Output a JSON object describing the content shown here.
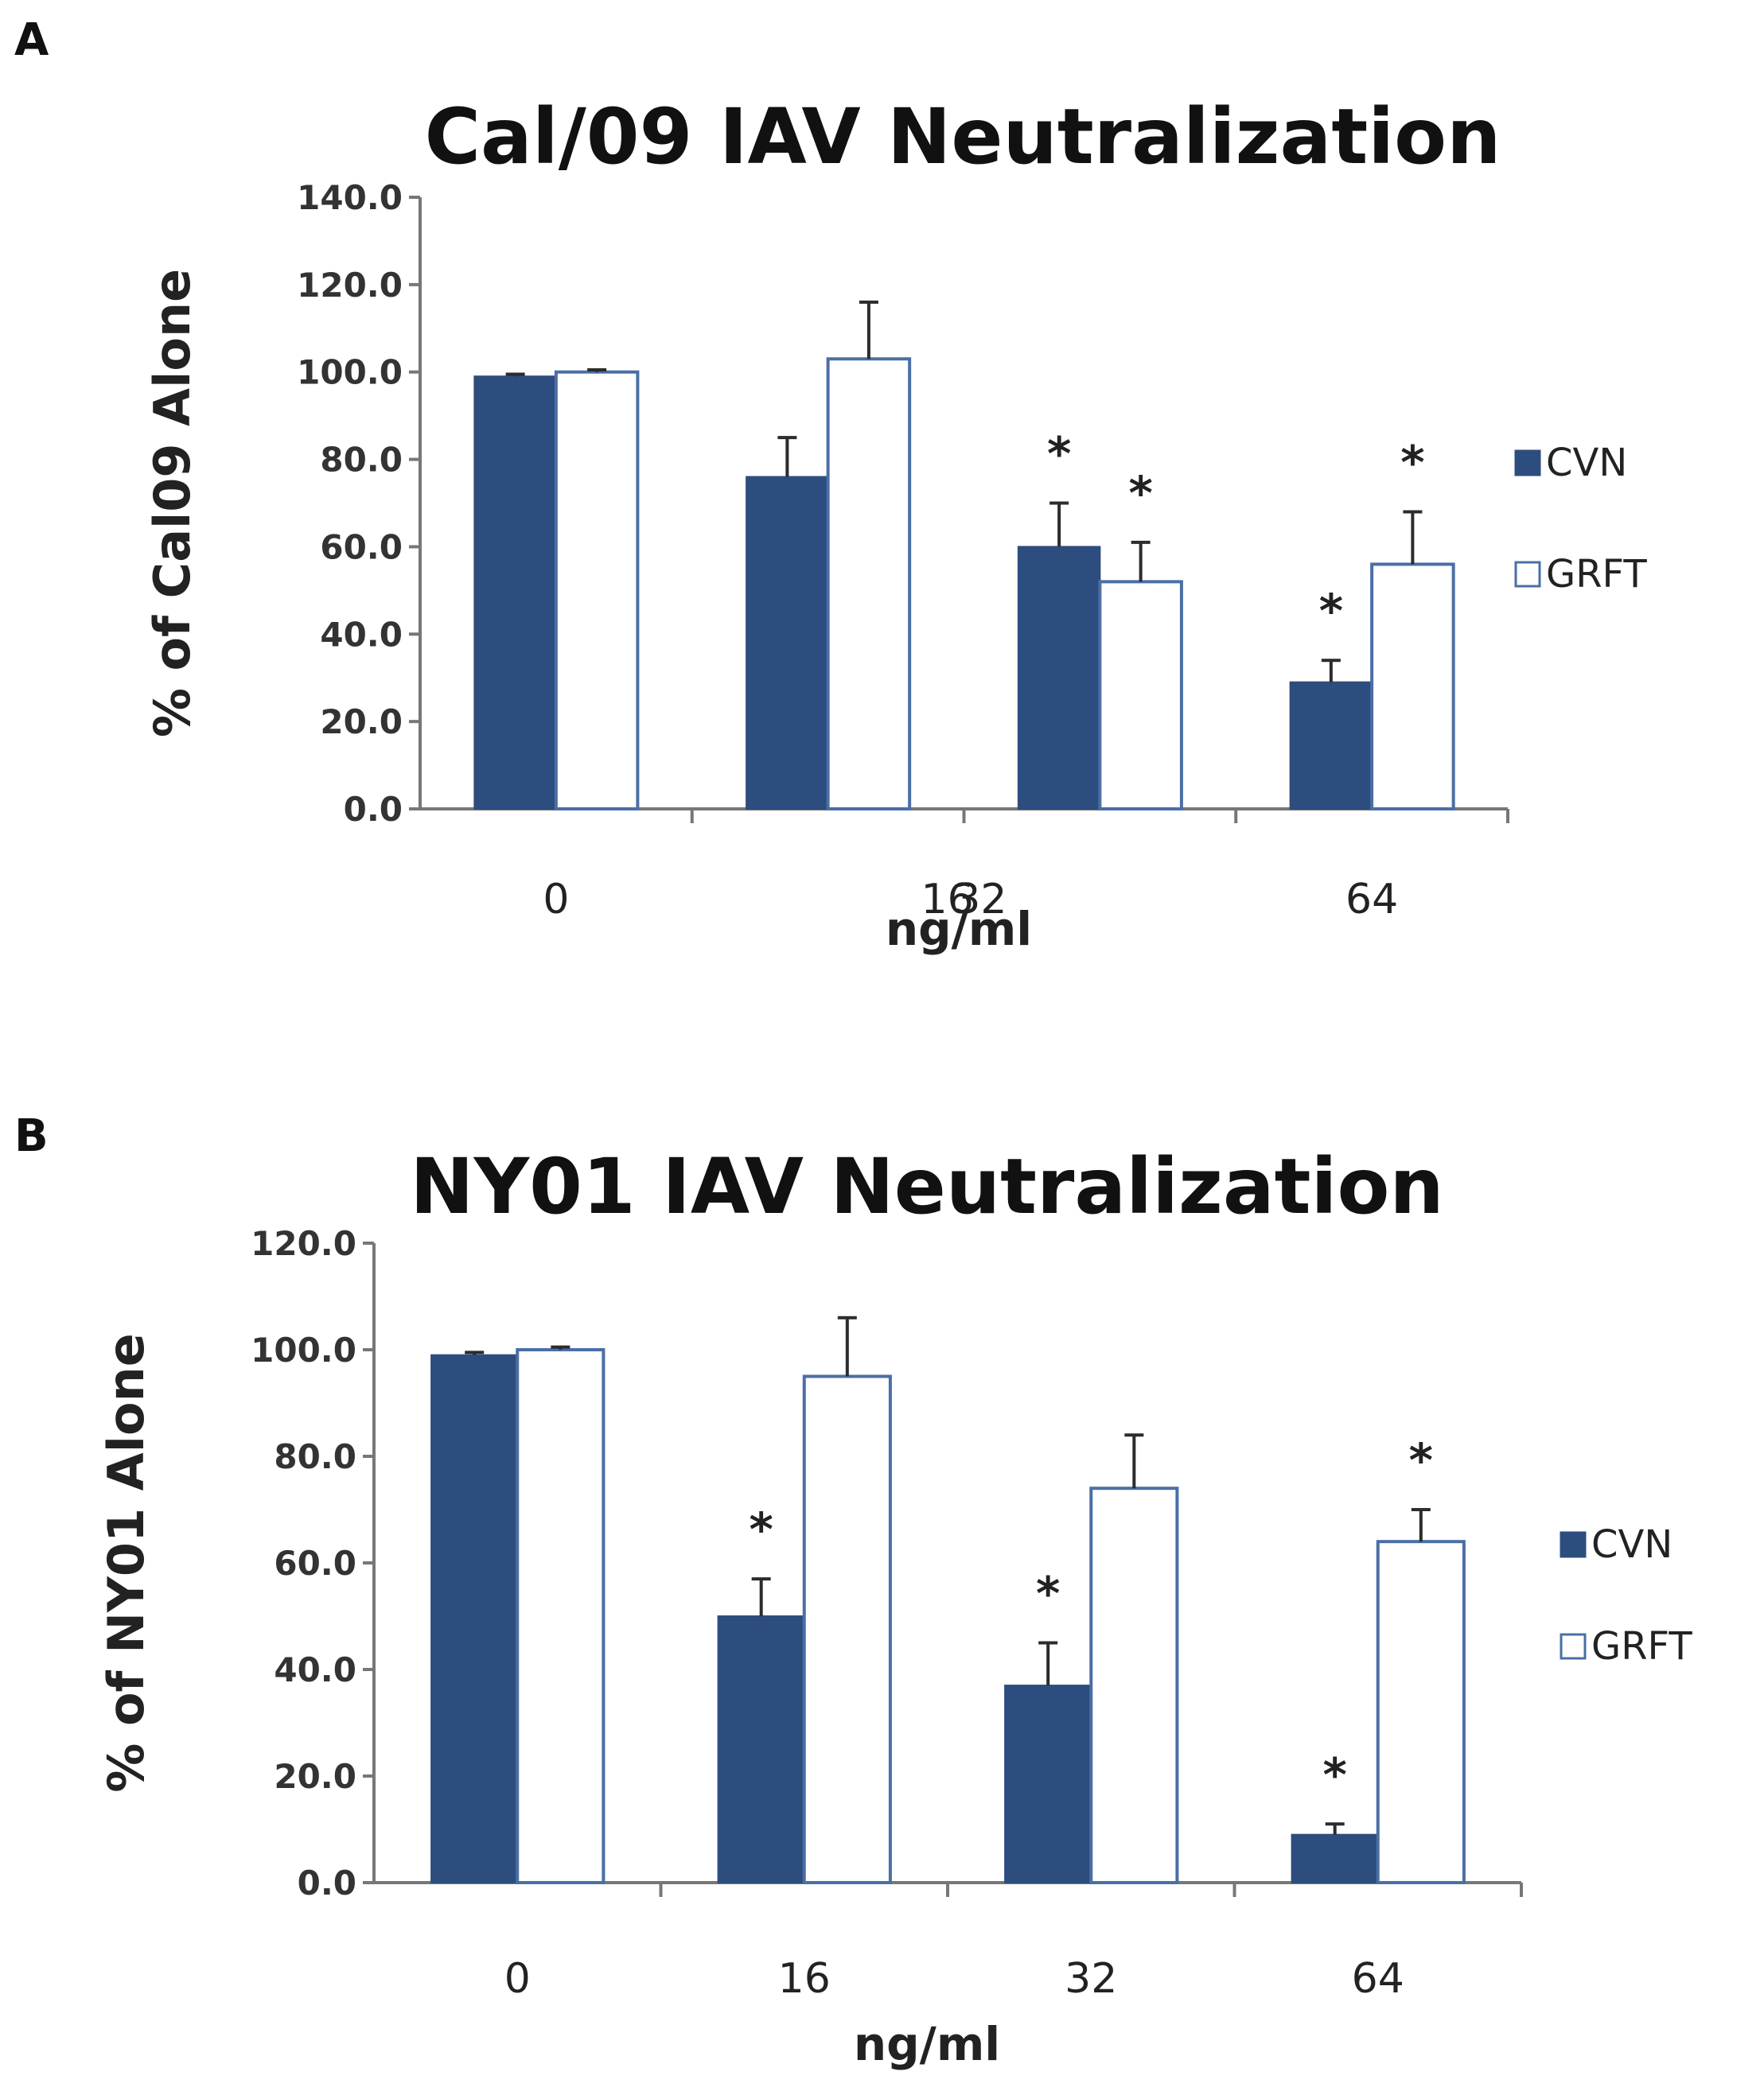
{
  "colors": {
    "cvn": "#2E4D7F",
    "grft": "#FFFFFF",
    "grft_stroke": "#4A6FA5",
    "axis": "#777777",
    "text": "#111111"
  },
  "chart_data": [
    {
      "panel": "A",
      "type": "bar",
      "title": "Cal/09 IAV Neutralization",
      "xlabel": "ng/ml",
      "ylabel": "% of Cal09 Alone",
      "ylim": [
        0,
        140
      ],
      "yticks": [
        "0.0",
        "20.0",
        "40.0",
        "60.0",
        "80.0",
        "100.0",
        "120.0",
        "140.0"
      ],
      "categories": [
        "0",
        "16",
        "32",
        "64"
      ],
      "series": [
        {
          "name": "CVN",
          "values": [
            99,
            76,
            60,
            29
          ],
          "errors": [
            0.5,
            9,
            10,
            5
          ],
          "significant": [
            false,
            false,
            true,
            true
          ]
        },
        {
          "name": "GRFT",
          "values": [
            100,
            103,
            52,
            56
          ],
          "errors": [
            0.5,
            13,
            9,
            12
          ],
          "significant": [
            false,
            false,
            true,
            true
          ]
        }
      ],
      "significance_marker": "*",
      "legend_position": "right"
    },
    {
      "panel": "B",
      "type": "bar",
      "title": "NY01 IAV Neutralization",
      "xlabel": "ng/ml",
      "ylabel": "% of NY01 Alone",
      "ylim": [
        0,
        120
      ],
      "yticks": [
        "0.0",
        "20.0",
        "40.0",
        "60.0",
        "80.0",
        "100.0",
        "120.0"
      ],
      "categories": [
        "0",
        "16",
        "32",
        "64"
      ],
      "series": [
        {
          "name": "CVN",
          "values": [
            99,
            50,
            37,
            9
          ],
          "errors": [
            0.5,
            7,
            8,
            2
          ],
          "significant": [
            false,
            true,
            true,
            true
          ]
        },
        {
          "name": "GRFT",
          "values": [
            100,
            95,
            74,
            64
          ],
          "errors": [
            0.5,
            11,
            10,
            6
          ],
          "significant": [
            false,
            false,
            false,
            true
          ]
        }
      ],
      "significance_marker": "*",
      "legend_position": "right"
    }
  ]
}
